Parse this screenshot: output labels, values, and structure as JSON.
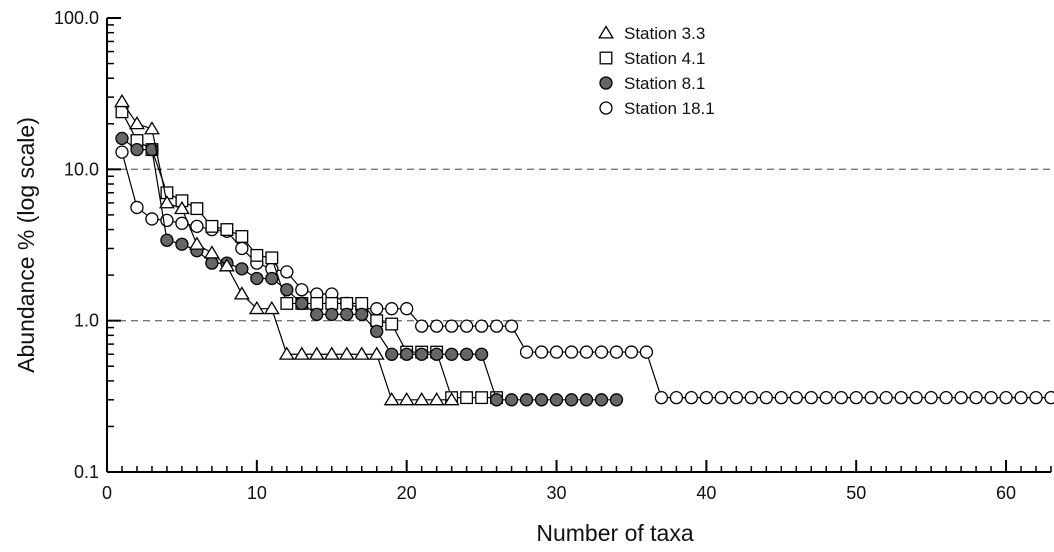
{
  "chart_data": {
    "type": "line",
    "xlabel": "Number of taxa",
    "ylabel": "Abundance % (log scale)",
    "yscale": "log",
    "xlim": [
      0,
      63
    ],
    "ylim": [
      0.1,
      100
    ],
    "xticks": [
      0,
      10,
      20,
      30,
      40,
      50,
      60
    ],
    "xtick_labels": [
      "0",
      "10",
      "20",
      "30",
      "40",
      "50",
      "60"
    ],
    "yticks": [
      0.1,
      1,
      10,
      100
    ],
    "ytick_labels": [
      "0.1",
      "1.0",
      "10.0",
      "100.0"
    ],
    "reference_lines": [
      1,
      10
    ],
    "legend_position": "top-right",
    "series": [
      {
        "name": "Station 3.3",
        "marker": "triangle",
        "color": "#ffffff",
        "x": [
          1,
          2,
          3,
          4,
          5,
          6,
          7,
          8,
          9,
          10,
          11,
          12,
          13,
          14,
          15,
          16,
          17,
          18,
          19,
          20,
          21,
          22,
          23
        ],
        "y": [
          28,
          20,
          18.5,
          6,
          5.5,
          3.2,
          2.8,
          2.3,
          1.5,
          1.2,
          1.2,
          0.6,
          0.6,
          0.6,
          0.6,
          0.6,
          0.6,
          0.6,
          0.3,
          0.3,
          0.3,
          0.3,
          0.3
        ]
      },
      {
        "name": "Station 4.1",
        "marker": "square",
        "color": "#ffffff",
        "x": [
          1,
          2,
          3,
          4,
          5,
          6,
          7,
          8,
          9,
          10,
          11,
          12,
          13,
          14,
          15,
          16,
          17,
          18,
          19,
          20,
          21,
          22,
          23,
          24,
          25,
          26
        ],
        "y": [
          24,
          15.5,
          13.5,
          7,
          6.2,
          5.5,
          4.2,
          4,
          3.6,
          2.7,
          2.6,
          1.3,
          1.3,
          1.3,
          1.3,
          1.3,
          1.3,
          1,
          0.95,
          0.62,
          0.62,
          0.62,
          0.31,
          0.31,
          0.31,
          0.31
        ]
      },
      {
        "name": "Station 8.1",
        "marker": "circle-filled",
        "color": "#666666",
        "x": [
          1,
          2,
          3,
          4,
          5,
          6,
          7,
          8,
          9,
          10,
          11,
          12,
          13,
          14,
          15,
          16,
          17,
          18,
          19,
          20,
          21,
          22,
          23,
          24,
          25,
          26,
          27,
          28,
          29,
          30,
          31,
          32,
          33,
          34
        ],
        "y": [
          16,
          13.5,
          13.5,
          3.4,
          3.2,
          2.9,
          2.4,
          2.4,
          2.2,
          1.9,
          1.9,
          1.6,
          1.3,
          1.1,
          1.1,
          1.1,
          1.1,
          0.85,
          0.6,
          0.6,
          0.6,
          0.6,
          0.6,
          0.6,
          0.6,
          0.3,
          0.3,
          0.3,
          0.3,
          0.3,
          0.3,
          0.3,
          0.3,
          0.3
        ]
      },
      {
        "name": "Station 18.1",
        "marker": "circle-open",
        "color": "#ffffff",
        "x": [
          1,
          2,
          3,
          4,
          5,
          6,
          7,
          8,
          9,
          10,
          11,
          12,
          13,
          14,
          15,
          16,
          17,
          18,
          19,
          20,
          21,
          22,
          23,
          24,
          25,
          26,
          27,
          28,
          29,
          30,
          31,
          32,
          33,
          34,
          35,
          36,
          37,
          38,
          39,
          40,
          41,
          42,
          43,
          44,
          45,
          46,
          47,
          48,
          49,
          50,
          51,
          52,
          53,
          54,
          55,
          56,
          57,
          58,
          59,
          60,
          61,
          62,
          63
        ],
        "y": [
          13,
          5.6,
          4.7,
          4.6,
          4.4,
          4.2,
          4,
          3.9,
          3,
          2.4,
          2.2,
          2.1,
          1.6,
          1.5,
          1.5,
          1.3,
          1.2,
          1.2,
          1.2,
          1.2,
          0.92,
          0.92,
          0.92,
          0.92,
          0.92,
          0.92,
          0.92,
          0.62,
          0.62,
          0.62,
          0.62,
          0.62,
          0.62,
          0.62,
          0.62,
          0.62,
          0.31,
          0.31,
          0.31,
          0.31,
          0.31,
          0.31,
          0.31,
          0.31,
          0.31,
          0.31,
          0.31,
          0.31,
          0.31,
          0.31,
          0.31,
          0.31,
          0.31,
          0.31,
          0.31,
          0.31,
          0.31,
          0.31,
          0.31,
          0.31,
          0.31,
          0.31,
          0.31
        ]
      }
    ]
  }
}
